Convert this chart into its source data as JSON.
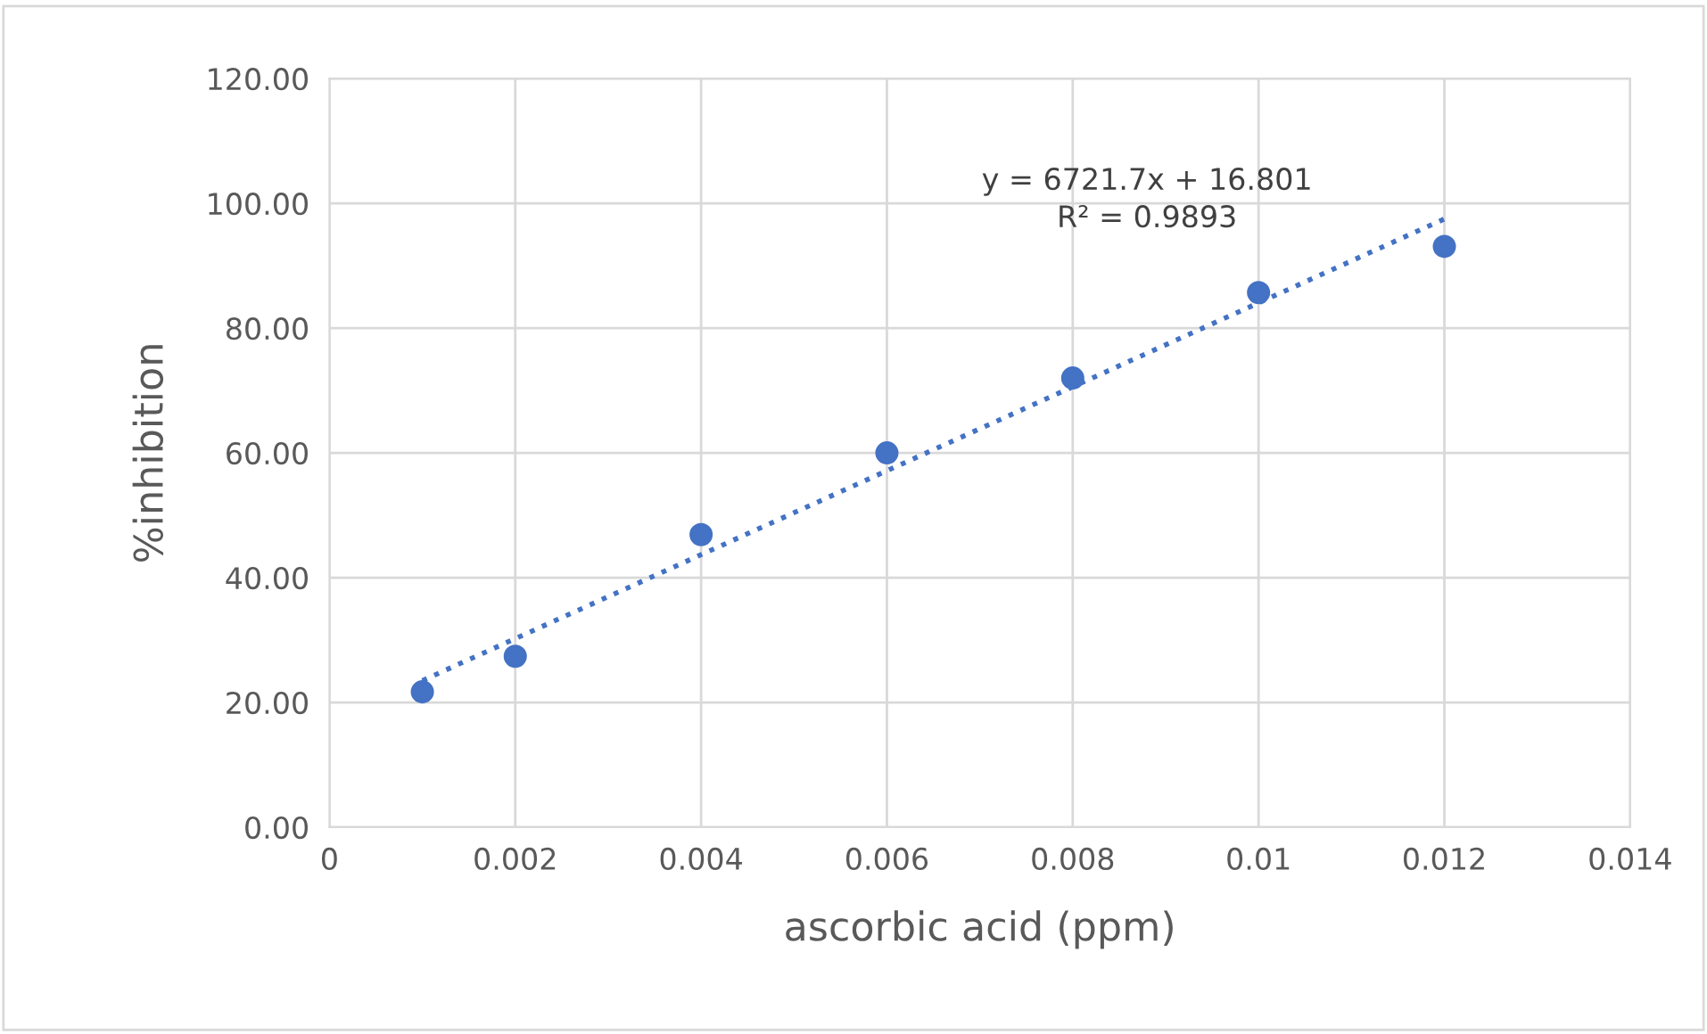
{
  "chart_data": {
    "type": "scatter",
    "xlabel": "ascorbic acid (ppm)",
    "ylabel": "%inhibition",
    "x": [
      0.001,
      0.002,
      0.004,
      0.006,
      0.008,
      0.01,
      0.012
    ],
    "series": [
      {
        "color": "#4472c4",
        "marker": "circle",
        "values": [
          21.7,
          27.4,
          46.9,
          60,
          72,
          85.7,
          93.1
        ]
      },
      {
        "type": "line",
        "color": "#4472c4",
        "line_style": "dotted",
        "marker": "none",
        "x": [
          0.001,
          0.012
        ],
        "values": [
          23.5,
          97.5
        ]
      }
    ],
    "annotations": [
      "y = 6721.7x + 16.801",
      "R² = 0.9893"
    ],
    "xlim": [
      0,
      0.014
    ],
    "xticks": [
      0,
      0.002,
      0.004,
      0.006,
      0.008,
      0.01,
      0.012,
      0.014
    ],
    "ylim": [
      0,
      120
    ],
    "yticks": [
      {
        "value": 0,
        "label": "0.00"
      },
      {
        "value": 20,
        "label": "20.00"
      },
      {
        "value": 40,
        "label": "40.00"
      },
      {
        "value": 60,
        "label": "60.00"
      },
      {
        "value": 80,
        "label": "80.00"
      },
      {
        "value": 100,
        "label": "100.00"
      },
      {
        "value": 120,
        "label": "120.00"
      }
    ],
    "grid": true
  }
}
